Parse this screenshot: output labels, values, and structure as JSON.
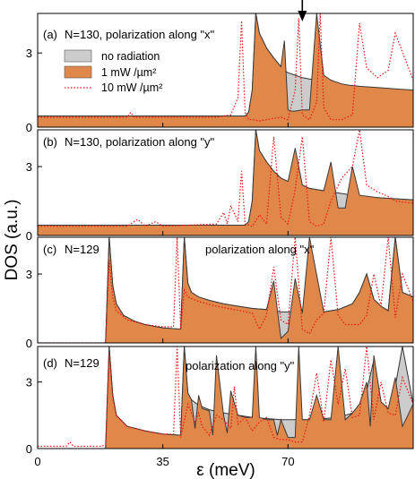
{
  "chart_data": {
    "type": "area",
    "xlabel": "ε (meV)",
    "ylabel": "DOS (a.u.)",
    "xlim": [
      0,
      105
    ],
    "ylim": [
      0,
      4.6
    ],
    "xticks": [
      "0",
      "35",
      "70"
    ],
    "xtick_values": [
      0,
      35,
      70
    ],
    "yticks": [
      "0",
      "3"
    ],
    "ytick_values": [
      0,
      3
    ],
    "legend": {
      "placement": "top-left of panel (a)",
      "entries": [
        {
          "label": "no radiation",
          "color": "#cccccc"
        },
        {
          "label": "1 mW /µm²",
          "color": "#e0884a"
        },
        {
          "label": "10 mW /µm²",
          "color": "#ee1111"
        }
      ]
    },
    "arrow_at_x": 74,
    "colors": {
      "gray": "#cccccc",
      "orange": "#e0884a",
      "red": "#ee1111"
    },
    "panels": [
      {
        "label": "(a)",
        "text": "N=130, polarization along \"x\"",
        "series": [
          {
            "name": "no radiation",
            "x": [
              0,
              58,
              59,
              60,
              61,
              62,
              64,
              66,
              68,
              69,
              70,
              71,
              72,
              74,
              76,
              78,
              80,
              82,
              84,
              85,
              87,
              90,
              95,
              100,
              105
            ],
            "y": [
              0.45,
              0.45,
              0.6,
              1.5,
              4.6,
              3.8,
              3.2,
              2.8,
              2.45,
              2.3,
              2.2,
              2.15,
              2.1,
              2.0,
              1.95,
              1.9,
              1.85,
              1.8,
              1.75,
              1.7,
              1.65,
              1.6,
              1.55,
              1.5,
              1.45
            ]
          },
          {
            "name": "1 mW /µm²",
            "x": [
              0,
              58,
              59,
              60,
              61,
              62,
              64,
              66,
              68,
              69,
              70,
              71,
              72,
              74,
              76,
              78,
              80,
              82,
              84,
              85,
              87,
              90,
              95,
              100,
              105
            ],
            "y": [
              0.45,
              0.45,
              0.6,
              1.5,
              4.6,
              3.8,
              3.2,
              2.8,
              2.45,
              3.5,
              0.7,
              0.65,
              0.65,
              0.7,
              0.7,
              4.6,
              2.1,
              1.9,
              1.8,
              1.75,
              1.7,
              1.65,
              1.6,
              1.55,
              1.5
            ]
          },
          {
            "name": "10 mW /µm²",
            "x": [
              0,
              25,
              26,
              27,
              50,
              54,
              56,
              57,
              58,
              59,
              60,
              62,
              64,
              66,
              68,
              70,
              72,
              73,
              74,
              76,
              78,
              79,
              80,
              82,
              85,
              88,
              90,
              92,
              95,
              98,
              100,
              105
            ],
            "y": [
              0.4,
              0.4,
              0.6,
              0.4,
              0.4,
              0.5,
              1.2,
              4.3,
              0.6,
              0.3,
              0.3,
              0.25,
              0.3,
              0.35,
              0.4,
              0.3,
              1.5,
              4.4,
              0.5,
              0.3,
              1.0,
              4.6,
              0.8,
              0.3,
              0.3,
              0.5,
              4.2,
              2.4,
              2.0,
              2.3,
              3.8,
              1.9
            ]
          }
        ]
      },
      {
        "label": "(b)",
        "text": "N=130, polarization along \"y\"",
        "series": [
          {
            "name": "no radiation",
            "x": [
              0,
              58,
              59,
              60,
              61,
              62,
              64,
              66,
              68,
              70,
              72,
              74,
              76,
              78,
              80,
              82,
              84,
              86,
              88,
              90,
              95,
              100,
              105
            ],
            "y": [
              0.45,
              0.45,
              0.6,
              1.5,
              4.6,
              3.7,
              3.2,
              2.8,
              2.5,
              2.35,
              2.25,
              2.15,
              2.05,
              2.0,
              1.95,
              1.9,
              1.85,
              1.8,
              1.75,
              1.7,
              1.65,
              1.6,
              1.55
            ]
          },
          {
            "name": "1 mW /µm²",
            "x": [
              0,
              58,
              59,
              60,
              61,
              62,
              64,
              66,
              68,
              70,
              72,
              74,
              76,
              78,
              80,
              82,
              84,
              86,
              88,
              90,
              95,
              100,
              105
            ],
            "y": [
              0.45,
              0.45,
              0.6,
              1.5,
              4.6,
              3.7,
              3.2,
              2.8,
              2.5,
              2.35,
              3.8,
              2.2,
              2.05,
              2.0,
              1.95,
              3.2,
              1.2,
              1.2,
              3.0,
              1.75,
              1.65,
              1.6,
              1.55
            ]
          },
          {
            "name": "10 mW /µm²",
            "x": [
              0,
              25,
              28,
              30,
              33,
              35,
              50,
              52,
              53,
              54,
              56,
              57,
              58,
              60,
              62,
              64,
              66,
              68,
              70,
              72,
              74,
              76,
              78,
              80,
              82,
              85,
              88,
              90,
              92,
              95,
              98,
              100,
              105
            ],
            "y": [
              0.4,
              0.4,
              0.7,
              0.4,
              0.6,
              0.4,
              0.5,
              1.0,
              0.5,
              1.3,
              0.6,
              2.8,
              0.5,
              0.4,
              0.9,
              0.5,
              4.3,
              0.8,
              0.5,
              2.0,
              4.3,
              0.6,
              0.4,
              0.5,
              1.5,
              2.5,
              3.0,
              4.6,
              2.2,
              1.9,
              1.7,
              1.5,
              1.4
            ]
          }
        ]
      },
      {
        "label": "(c)",
        "text": "N=129",
        "subtext": "polarization along \"x\"",
        "series": [
          {
            "name": "no radiation",
            "x": [
              0,
              19,
              20,
              21,
              22,
              24,
              27,
              30,
              35,
              40,
              41,
              42,
              43,
              45,
              48,
              52,
              56,
              60,
              64,
              66,
              68,
              70,
              72,
              74,
              76,
              80,
              84,
              88,
              90,
              92,
              94,
              96,
              98,
              100,
              102,
              105
            ],
            "y": [
              0,
              0,
              4.6,
              2.5,
              1.7,
              1.2,
              0.95,
              0.8,
              0.65,
              0.6,
              4.6,
              2.6,
              2.2,
              2.0,
              1.85,
              1.7,
              1.6,
              1.5,
              1.45,
              1.4,
              1.35,
              1.35,
              1.3,
              1.3,
              1.3,
              1.35,
              1.45,
              1.7,
              2.2,
              3.0,
              1.9,
              1.6,
              1.4,
              4.6,
              2.2,
              2.0
            ]
          },
          {
            "name": "1 mW /µm²",
            "x": [
              0,
              19,
              20,
              21,
              22,
              24,
              27,
              30,
              35,
              40,
              41,
              42,
              43,
              45,
              48,
              52,
              56,
              60,
              64,
              66,
              68,
              70,
              72,
              74,
              76,
              80,
              84,
              88,
              90,
              92,
              94,
              96,
              98,
              100,
              102,
              105
            ],
            "y": [
              0,
              0,
              4.6,
              2.5,
              1.7,
              1.2,
              0.95,
              0.8,
              0.65,
              0.6,
              4.6,
              2.6,
              2.2,
              2.0,
              1.85,
              1.7,
              1.6,
              1.5,
              1.45,
              2.7,
              0.2,
              0.5,
              2.8,
              1.3,
              4.6,
              1.35,
              1.45,
              1.7,
              2.2,
              3.0,
              1.9,
              1.6,
              1.4,
              4.6,
              2.2,
              2.0
            ]
          },
          {
            "name": "10 mW /µm²",
            "x": [
              0,
              19,
              20,
              21,
              22,
              25,
              30,
              35,
              38,
              39,
              40,
              41,
              42,
              45,
              50,
              55,
              60,
              62,
              64,
              66,
              68,
              70,
              72,
              74,
              76,
              78,
              80,
              82,
              84,
              86,
              88,
              90,
              92,
              94,
              96,
              98,
              100,
              102,
              105
            ],
            "y": [
              0,
              0,
              3.6,
              2.0,
              1.4,
              1.0,
              0.8,
              0.7,
              0.7,
              4.6,
              0.6,
              2.3,
              2.0,
              1.8,
              1.6,
              1.45,
              1.3,
              0.6,
              1.2,
              3.3,
              1.0,
              0.8,
              4.6,
              0.6,
              0.4,
              1.0,
              1.3,
              4.6,
              1.2,
              0.8,
              0.8,
              0.8,
              1.2,
              3.0,
              1.6,
              4.6,
              1.1,
              3.0,
              1.8
            ]
          }
        ]
      },
      {
        "label": "(d)",
        "text": "N=129",
        "subtext": "polarization along \"y\"",
        "series": [
          {
            "name": "no radiation",
            "x": [
              0,
              19,
              20,
              21,
              22,
              25,
              30,
              35,
              40,
              41,
              42,
              43,
              45,
              48,
              52,
              56,
              60,
              64,
              68,
              72,
              76,
              80,
              84,
              88,
              90,
              92,
              94,
              96,
              98,
              100,
              102,
              105
            ],
            "y": [
              0,
              0,
              4.6,
              2.4,
              1.5,
              1.0,
              0.8,
              0.65,
              0.6,
              4.6,
              2.5,
              2.2,
              1.95,
              1.75,
              1.6,
              1.5,
              1.4,
              1.35,
              1.3,
              1.3,
              1.3,
              1.35,
              1.4,
              1.6,
              2.0,
              2.6,
              4.0,
              2.1,
              1.8,
              2.8,
              4.6,
              2.0
            ]
          },
          {
            "name": "1 mW /µm²",
            "x": [
              0,
              19,
              20,
              21,
              22,
              25,
              30,
              35,
              40,
              41,
              42,
              43,
              44,
              45,
              46,
              48,
              49,
              50,
              52,
              53,
              54,
              56,
              58,
              60,
              61,
              62,
              64,
              66,
              67,
              68,
              70,
              72,
              73,
              74,
              76,
              78,
              80,
              82,
              84,
              86,
              88,
              90,
              92,
              93,
              94,
              96,
              98,
              100,
              102,
              105
            ],
            "y": [
              0,
              0,
              4.6,
              2.4,
              1.5,
              1.0,
              0.8,
              0.65,
              0.6,
              4.6,
              2.5,
              2.2,
              0.9,
              2.4,
              1.8,
              1.7,
              0.6,
              4.2,
              1.5,
              0.7,
              2.6,
              1.5,
              1.4,
              1.4,
              4.6,
              1.4,
              1.3,
              1.3,
              0.6,
              1.3,
              0.5,
              0.5,
              4.6,
              1.3,
              1.3,
              2.4,
              1.3,
              1.3,
              4.6,
              1.3,
              1.6,
              2.0,
              3.0,
              1.0,
              4.2,
              2.1,
              1.8,
              3.2,
              1.0,
              2.0
            ]
          },
          {
            "name": "10 mW /µm²",
            "x": [
              0,
              8,
              9,
              10,
              18,
              19,
              20,
              21,
              22,
              25,
              30,
              35,
              38,
              39,
              40,
              42,
              44,
              45,
              46,
              48,
              50,
              52,
              54,
              55,
              56,
              58,
              60,
              62,
              64,
              66,
              68,
              70,
              72,
              74,
              76,
              78,
              80,
              82,
              84,
              86,
              88,
              90,
              92,
              94,
              96,
              98,
              100,
              102,
              105
            ],
            "y": [
              0.1,
              0.1,
              0.3,
              0.1,
              0.1,
              0.2,
              4.3,
              2.3,
              1.5,
              1.0,
              0.8,
              0.65,
              0.65,
              4.6,
              0.5,
              2.0,
              1.2,
              1.6,
              1.0,
              0.6,
              1.5,
              1.3,
              0.9,
              2.8,
              1.1,
              1.4,
              0.8,
              1.2,
              1.4,
              0.5,
              0.4,
              0.4,
              0.3,
              0.3,
              1.5,
              3.4,
              1.2,
              4.0,
              2.0,
              3.6,
              1.4,
              1.5,
              4.6,
              1.3,
              3.0,
              1.6,
              1.5,
              3.2,
              2.0
            ]
          }
        ]
      }
    ]
  }
}
